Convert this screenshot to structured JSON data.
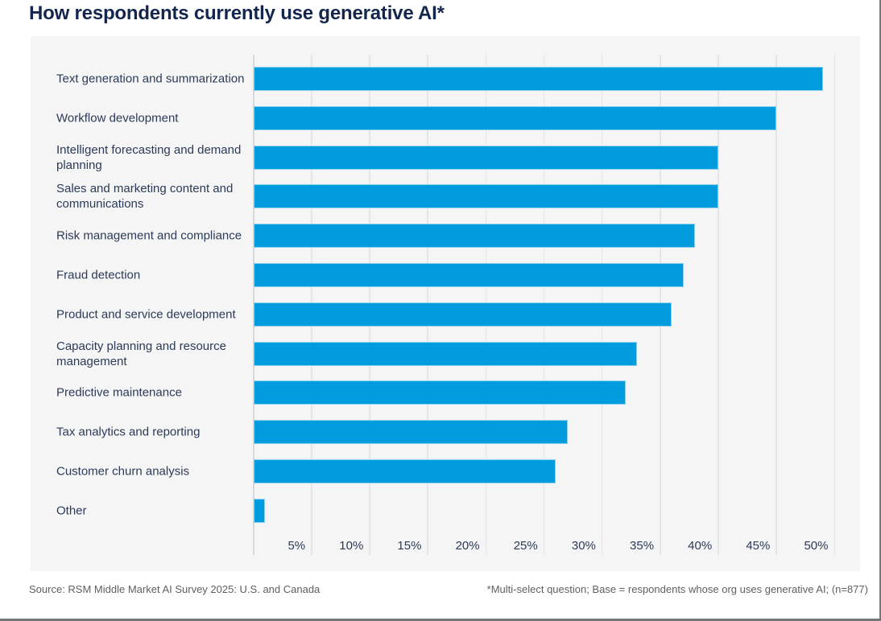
{
  "title": "How respondents currently use generative AI*",
  "footer": {
    "source": "Source: RSM Middle Market AI Survey 2025: U.S. and Canada",
    "note": "*Multi-select question; Base = respondents whose org uses generative AI; (n=877)"
  },
  "colors": {
    "bar": "#009CDE",
    "title": "#14264E",
    "category_label": "#2B3A57",
    "plot_background": "#F5F5F6",
    "gridline": "#E4E5E7",
    "axis_line": "#D7D8DA",
    "footer_text": "#5E5F61",
    "frame_border": "#77787A"
  },
  "chart_data": {
    "type": "bar",
    "orientation": "horizontal",
    "title": "How respondents currently use generative AI*",
    "categories": [
      "Text generation and summarization",
      "Workflow development",
      "Intelligent forecasting and demand planning",
      "Sales and marketing content and communications",
      "Risk management and compliance",
      "Fraud detection",
      "Product and service development",
      "Capacity planning and resource management",
      "Predictive maintenance",
      "Tax analytics and reporting",
      "Customer churn analysis",
      "Other"
    ],
    "values": [
      49,
      45,
      40,
      40,
      38,
      37,
      36,
      33,
      32,
      27,
      26,
      1
    ],
    "unit": "%",
    "xlim": [
      0,
      51
    ],
    "x_tick_values": [
      5,
      10,
      15,
      20,
      25,
      30,
      35,
      40,
      45,
      50
    ],
    "x_tick_labels": [
      "5%",
      "10%",
      "15%",
      "20%",
      "25%",
      "30%",
      "35%",
      "40%",
      "45%",
      "50%"
    ],
    "grid": "vertical",
    "legend": "none",
    "xlabel": "",
    "ylabel": ""
  }
}
